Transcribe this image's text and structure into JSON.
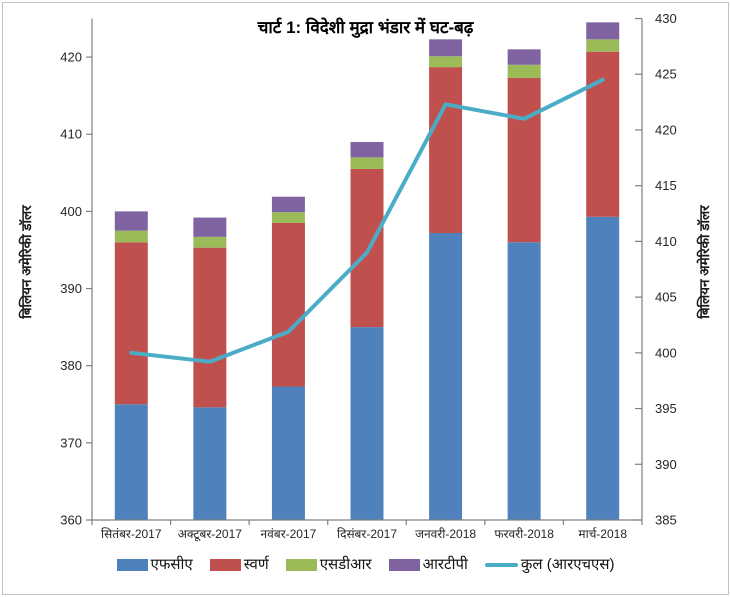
{
  "chart_data": {
    "type": "bar",
    "subtype": "stacked-column-with-line-overlay",
    "title": "चार्ट 1: विदेशी मुद्रा भंडार में घट-बढ़",
    "categories": [
      "सितंबर-2017",
      "अक्टूबर-2017",
      "नवंबर-2017",
      "दिसंबर-2017",
      "जनवरी-2018",
      "फरवरी-2018",
      "मार्च-2018"
    ],
    "series": [
      {
        "key": "fca",
        "name": "एफसीए",
        "type": "bar",
        "axis": "left",
        "color": "#4F81BD",
        "values": [
          375.0,
          374.6,
          377.3,
          385.0,
          397.2,
          396.0,
          399.3
        ]
      },
      {
        "key": "gold",
        "name": "स्वर्ण",
        "type": "bar",
        "axis": "left",
        "color": "#C0504D",
        "values": [
          21.0,
          20.7,
          21.2,
          20.5,
          21.5,
          21.3,
          21.4
        ]
      },
      {
        "key": "sdr",
        "name": "एसडीआर",
        "type": "bar",
        "axis": "left",
        "color": "#9BBB59",
        "values": [
          1.5,
          1.4,
          1.4,
          1.5,
          1.4,
          1.7,
          1.6
        ]
      },
      {
        "key": "rtp",
        "name": "आरटीपी",
        "type": "bar",
        "axis": "left",
        "color": "#8064A2",
        "values": [
          2.5,
          2.5,
          2.0,
          2.0,
          2.2,
          2.0,
          2.2
        ]
      },
      {
        "key": "total",
        "name": "कुल (आरएचएस)",
        "type": "line",
        "axis": "right",
        "color": "#4BACC6",
        "values": [
          400.0,
          399.2,
          401.9,
          409.0,
          422.3,
          421.0,
          424.5
        ]
      }
    ],
    "left_axis": {
      "label": "बिलियन अमेरिकी डॉलर",
      "min": 360,
      "max": 425,
      "ticks": [
        360,
        370,
        380,
        390,
        400,
        410,
        420
      ]
    },
    "right_axis": {
      "label": "बिलियन अमेरिकी डॉलर",
      "min": 385,
      "max": 430,
      "ticks": [
        385,
        390,
        395,
        400,
        405,
        410,
        415,
        420,
        425,
        430
      ]
    },
    "grid": false,
    "legend_position": "bottom",
    "colors": {
      "background": "#FFFFFF",
      "frame_border": "#C2C2C2",
      "axis_line": "#7F7F7F",
      "tick_text": "#262626",
      "title_text": "#000000"
    }
  }
}
